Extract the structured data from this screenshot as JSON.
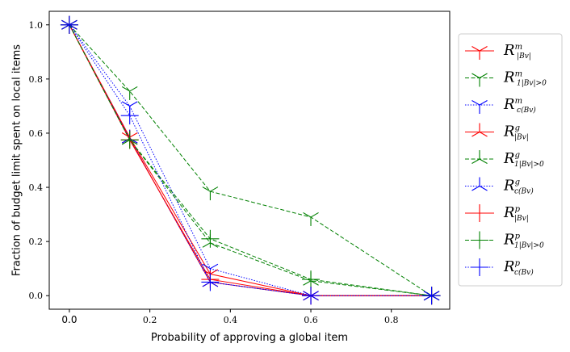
{
  "chart_data": {
    "type": "line",
    "title": "",
    "xlabel": "Probability of approving a global item",
    "ylabel": "Fraction of budget limit spent on local items",
    "xlim": [
      -0.05,
      0.945
    ],
    "ylim": [
      -0.05,
      1.05
    ],
    "xticks": [
      "0.0",
      "0.2",
      "0.4",
      "0.6",
      "0.8"
    ],
    "xtick_values": [
      0.0,
      0.2,
      0.4,
      0.6,
      0.8
    ],
    "yticks": [
      "0.0",
      "0.2",
      "0.4",
      "0.6",
      "0.8",
      "1.0"
    ],
    "ytick_values": [
      0.0,
      0.2,
      0.4,
      0.6,
      0.8,
      1.0
    ],
    "grid": false,
    "legend_position": "outside-right",
    "colors": {
      "red": "#ff0000",
      "green": "#008000",
      "blue": "#0000ff"
    },
    "series": [
      {
        "id": "m1",
        "legend": {
          "base": "R",
          "sup": "m",
          "sub": "|B_v|"
        },
        "color": "#ff0000",
        "dash": "solid",
        "marker": "tri_down",
        "x": [
          0.0,
          0.15,
          0.35,
          0.6,
          0.9
        ],
        "y": [
          1.0,
          0.585,
          0.08,
          0.0,
          0.0
        ]
      },
      {
        "id": "m2",
        "legend": {
          "base": "R",
          "sup": "m",
          "sub": "1_{|B_v|>0}"
        },
        "color": "#008000",
        "dash": "dashed",
        "marker": "tri_down",
        "x": [
          0.0,
          0.15,
          0.35,
          0.6,
          0.9
        ],
        "y": [
          1.0,
          0.755,
          0.385,
          0.29,
          0.0
        ]
      },
      {
        "id": "m3",
        "legend": {
          "base": "R",
          "sup": "m",
          "sub": "c(B_v)"
        },
        "color": "#0000ff",
        "dash": "dotted",
        "marker": "tri_down",
        "x": [
          0.0,
          0.15,
          0.35,
          0.6,
          0.9
        ],
        "y": [
          1.0,
          0.7,
          0.1,
          0.0,
          0.0
        ]
      },
      {
        "id": "g1",
        "legend": {
          "base": "R",
          "sup": "g",
          "sub": "|B_v|"
        },
        "color": "#ff0000",
        "dash": "solid",
        "marker": "tri_up",
        "x": [
          0.0,
          0.15,
          0.35,
          0.6,
          0.9
        ],
        "y": [
          1.0,
          0.58,
          0.05,
          0.0,
          0.0
        ]
      },
      {
        "id": "g2",
        "legend": {
          "base": "R",
          "sup": "g",
          "sub": "1_{|B_v|>0}"
        },
        "color": "#008000",
        "dash": "dashed",
        "marker": "tri_up",
        "x": [
          0.0,
          0.15,
          0.35,
          0.6,
          0.9
        ],
        "y": [
          1.0,
          0.575,
          0.195,
          0.055,
          0.0
        ]
      },
      {
        "id": "g3",
        "legend": {
          "base": "R",
          "sup": "g",
          "sub": "c(B_v)"
        },
        "color": "#0000ff",
        "dash": "dotted",
        "marker": "tri_up",
        "x": [
          0.0,
          0.15,
          0.35,
          0.6,
          0.9
        ],
        "y": [
          1.0,
          0.58,
          0.05,
          0.0,
          0.0
        ]
      },
      {
        "id": "p1",
        "legend": {
          "base": "R",
          "sup": "p",
          "sub": "|B_v|"
        },
        "color": "#ff0000",
        "dash": "solid",
        "marker": "plus",
        "x": [
          0.0,
          0.15,
          0.35,
          0.6,
          0.9
        ],
        "y": [
          1.0,
          0.575,
          0.06,
          0.0,
          0.0
        ]
      },
      {
        "id": "p2",
        "legend": {
          "base": "R",
          "sup": "p",
          "sub": "1_{|B_v|>0}"
        },
        "color": "#008000",
        "dash": "dashed",
        "marker": "plus",
        "x": [
          0.0,
          0.15,
          0.35,
          0.6,
          0.9
        ],
        "y": [
          1.0,
          0.575,
          0.21,
          0.06,
          0.0
        ]
      },
      {
        "id": "p3",
        "legend": {
          "base": "R",
          "sup": "p",
          "sub": "c(B_v)"
        },
        "color": "#0000ff",
        "dash": "dotted",
        "marker": "plus",
        "x": [
          0.0,
          0.15,
          0.35,
          0.6,
          0.9
        ],
        "y": [
          1.0,
          0.665,
          0.05,
          0.0,
          0.0
        ]
      }
    ]
  }
}
